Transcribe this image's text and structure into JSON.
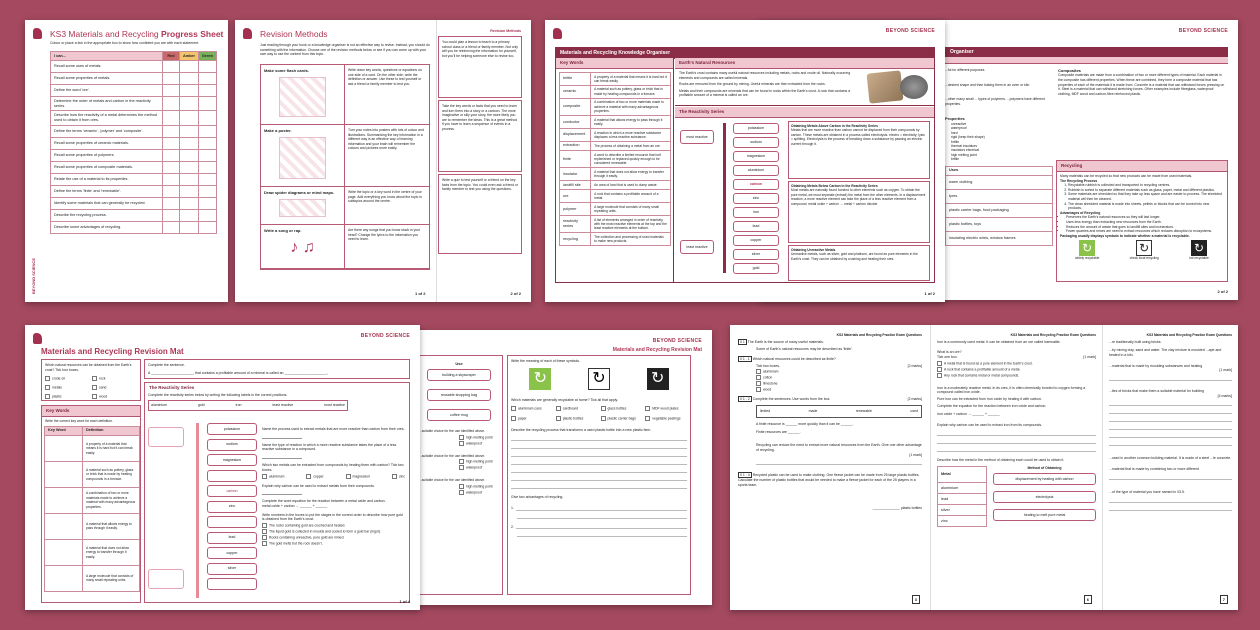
{
  "brand": "BEYOND SCIENCE",
  "colors": {
    "background": "#a4495f",
    "accent": "#8b2d47",
    "red": "#c96a6a",
    "amber": "#f2c46b",
    "green": "#79b05a"
  },
  "progress": {
    "title_a": "KS3 Materials and Recycling ",
    "title_b": "Progress Sheet",
    "intro": "Colour or place a tick in the appropriate box to show how confident you are with each statement.",
    "headers": [
      "I can...",
      "Red",
      "Amber",
      "Green"
    ],
    "rows": [
      "Recall some uses of metals.",
      "Recall some properties of metals.",
      "Define the word 'ore'.",
      "Determine the order of metals and carbon in the reactivity series.",
      "Describe how the reactivity of a metal determines the method used to obtain it from ores.",
      "Define the terms 'ceramic', 'polymer' and 'composite'.",
      "Recall some properties of ceramic materials.",
      "Recall some properties of polymers.",
      "Recall some properties of composite materials.",
      "Relate the use of a material to its properties.",
      "Define the terms 'finite' and 'renewable'.",
      "Identify some materials that can generally be recycled.",
      "Describe the recycling process.",
      "Describe some advantages of recycling."
    ]
  },
  "methods": {
    "title": "Revision Methods",
    "header_right": "Revision Methods",
    "intro": "Just reading through your book or a knowledge organiser is not an effective way to revise. Instead, you should do something with the information. Choose one of the revision methods below or see if you can come up with your own way to use the content from this topic.",
    "items": [
      {
        "label": "Make some flash cards.",
        "text": "Write down key words, questions or equations on one side of a card. On the other side, write the definition or answer. Use these to test yourself or ask a friend or family member to test you."
      },
      {
        "label": "Make a poster.",
        "text": "Turn your notes into posters with lots of colour and illustrations. Summarising the key information in a different way is an effective way of learning information and your brain will remember the colours and pictures more easily."
      },
      {
        "label": "Draw spider diagrams or mind maps.",
        "text": "Write the topic or a key word in the centre of your page. Add everything you know about the topic in subtopics around the centre."
      },
      {
        "label": "Write a song or rap.",
        "text": "Are there any songs that you know stuck in your head? Change the lyrics to the information you need to learn."
      }
    ],
    "right": [
      "You could plan a lesson to teach to a primary school class or a friend or family member. Not only will you be reinforcing the information for yourself, but you'll be helping someone else to revise too.",
      "Take the key words or facts that you need to learn and turn them into a story or a cartoon. The more imaginative or silly your story, the more likely you are to remember the ideas. This is a great method if you have to learn a sequence of events in a process.",
      "Write a quiz to test yourself or a friend on the key facts from the topic. You could even ask a friend or family member to test you using the questions."
    ],
    "page_left": "1 of 2",
    "page_right": "2 of 2"
  },
  "ko": {
    "title": "Materials and Recycling Knowledge Organiser",
    "key_words_title": "Key Words",
    "key_words": [
      [
        "brittle",
        "A property of a material that means it is hard but it can break easily."
      ],
      [
        "ceramic",
        "A material such as pottery, glass or brick that is made by heating compounds in a furnace."
      ],
      [
        "composite",
        "A combination of two or more materials made to achieve a material with many advantageous properties."
      ],
      [
        "conductor",
        "A material that allows energy to pass through it easily."
      ],
      [
        "displacement",
        "A reaction in which a more reactive substance displaces a less reactive substance."
      ],
      [
        "extraction",
        "The process of obtaining a metal from an ore."
      ],
      [
        "finite",
        "A word to describe a limited resource that isn't replenished or replaced quickly enough to be considered renewable."
      ],
      [
        "insulator",
        "A material that does not allow energy to transfer through it easily."
      ],
      [
        "landfill site",
        "An area of land that is used to dump waste."
      ],
      [
        "ore",
        "A rock that contains a profitable amount of a metal."
      ],
      [
        "polymer",
        "A large molecule that consists of many small repeating units."
      ],
      [
        "reactivity series",
        "A list of elements arranged in order of reactivity, with the most reactive elements at the top and the least reactive elements at the bottom."
      ],
      [
        "recycling",
        "The collection and processing of used materials to make new products."
      ]
    ],
    "earth_title": "Earth's Natural Resources",
    "earth_text": [
      "The Earth's crust contains many useful natural resources including metals, rocks and crude oil. Naturally occurring elements and compounds are called minerals.",
      "Rocks are removed from the ground by mining. Useful minerals are then extracted from the rocks.",
      "Metals and their compounds are minerals that can be found in rocks within the Earth's crust. A rock that contains a profitable amount of a mineral is called an ore."
    ],
    "reactivity_title": "The Reactivity Series",
    "most": "most reactive",
    "least": "least reactive",
    "metals": [
      "potassium",
      "sodium",
      "magnesium",
      "aluminium",
      "carbon",
      "zinc",
      "iron",
      "lead",
      "copper",
      "silver",
      "gold"
    ],
    "notes": [
      {
        "h": "Obtaining Metals Above Carbon in the Reactivity Series",
        "t": "Metals that are more reactive than carbon cannot be displaced from their compounds by carbon. These metals are obtained in a process called electrolysis. electro = electricity; lysis = splitting. Electrolysis is the process of breaking down a substance by passing an electric current through it."
      },
      {
        "h": "Obtaining Metals Below Carbon in the Reactivity Series",
        "t": "Most metals are naturally found bonded to other elements such as oxygen. To obtain the pure metal, we must separate (extract) the metal from the other elements. In a displacement reaction, a more reactive element can take the place of a less reactive element from a compound. metal oxide + carbon → metal + carbon dioxide"
      },
      {
        "h": "Obtaining Unreactive Metals",
        "t": "Unreactive metals, such as silver, gold and platinum, are found as pure elements in the Earth's crust. They can be obtained by crushing and heating their ores."
      }
    ],
    "page": "1 of 2",
    "p2_title": "Organiser",
    "p2_left": [
      "...ful for different purposes.",
      "...desired shape and then baking them in an oven or kiln.",
      "...other many small ... types of polymers. ...polymers have different properties."
    ],
    "p2_props_title": "Properties",
    "p2_props": [
      "unreactive",
      "waterproof",
      "hard",
      "rigid (keep their shape)",
      "brittle",
      "thermal insulators",
      "insulators electrical",
      "high melting point",
      "brittle"
    ],
    "p2_uses_title": "Uses",
    "p2_uses": [
      "warm clothing",
      "tyres",
      "plastic carrier bags, food packaging",
      "plastic bottles, toys",
      "insulating electric wires, window frames"
    ],
    "composites_title": "Composites",
    "composites_text": "Composite materials are made from a combination of two or more different types of material. Each material in the composite has different properties. When these are combined, they form a composite material that has properties of each of the materials it is made from. Concrete is a material that can withstand forces pressing on it. Steel is a material that can withstand stretching forces. Other examples include fibreglass, waterproof clothing, MDF wood and carbon-fibre reinforced plastic.",
    "recycling_title": "Recycling",
    "recycling_intro": "Many materials can be recycled so that new products can be made from used materials.",
    "process_title": "The Recycling Process",
    "process": [
      "Recyclable rubbish is collected and transported to recycling centres.",
      "Rubbish is sorted to separate different materials such as glass, paper, metal and different plastics.",
      "Some materials are shredded so that they take up less space and are easier to process. The shredded material will then be cleaned.",
      "The clean shredded material is made into sheets, pellets or blocks that can be turned into new products."
    ],
    "adv_title": "Advantages of Recycling",
    "adv": [
      "Preserves the Earth's natural resources so they will last longer.",
      "Uses less energy than extracting new resources from the Earth.",
      "Reduces the amount of waste that goes to landfill sites and incinerators.",
      "Fewer quarries and mines are need to extract resources which reduces disruption to ecosystems."
    ],
    "symbols_intro": "Packaging usually displays symbols to indicate whether a material is recyclable.",
    "symbols": [
      "widely recyclable",
      "check local recycling",
      "not recyclable"
    ],
    "page2": "2 of 2"
  },
  "mat": {
    "title": "Materials and Recycling Revision Mat",
    "q1": "Which natural resources can be obtained from the Earth's crust? Tick four boxes.",
    "q1_opts": [
      "crude oil",
      "rock",
      "metals",
      "sand",
      "plastic",
      "wood"
    ],
    "complete": "Complete the sentence.",
    "sentence_a": "A",
    "sentence_b": "that contains a profitable amount of a mineral is called an",
    "kw_title": "Key Words",
    "kw_intro": "Write the correct key word for each definition.",
    "kw_headers": [
      "Key Word",
      "Definition"
    ],
    "kw_defs": [
      "A property of a material that means it is hard but it can break easily.",
      "A material such as pottery, glass or brick that is made by heating compounds in a furnace.",
      "A combination of two or more materials made to achieve a material with many advantageous properties.",
      "A material that allows energy to pass through it easily.",
      "A material that does not allow energy to transfer through it easily.",
      "A large molecule that consists of many small repeating units."
    ],
    "rs_title": "The Reactivity Series",
    "rs_intro": "Complete the reactivity series below by writing the following labels in the correct positions.",
    "rs_labels": [
      "aluminium",
      "gold",
      "iron",
      "least reactive",
      "most reactive"
    ],
    "rs_pills": [
      "potassium",
      "sodium",
      "magnesium",
      "",
      "carbon",
      "zinc",
      "",
      "lead",
      "copper",
      "silver",
      ""
    ],
    "rs_qs": [
      "Name the process used to extract metals that are more reactive than carbon from their ores.",
      "Name the type of reaction in which a more reactive substance takes the place of a less reactive substance in a compound.",
      "Which two metals can be extracted from compounds by heating them with carbon? Tick two boxes.",
      "Explain why carbon can be used to extract metals from their compounds.",
      "Complete the word equation for the reaction between a metal oxide and carbon.",
      "Write numbers in the boxes to put the stages in the correct order to describe how pure gold is obtained from the Earth's crust."
    ],
    "rs_opts": [
      "aluminium",
      "copper",
      "magnesium",
      "zinc"
    ],
    "equation": "metal oxide + carbon → ______ + ______",
    "gold_steps": [
      "The rocks containing gold are crushed and heated.",
      "The liquid gold is collected in moulds and cooled to form a gold bar (ingot).",
      "Rocks containing unreactive, pure gold are mined.",
      "The gold melts but the rock doesn't."
    ],
    "page": "1 of 4",
    "p2_header": "Materials and Recycling Revision Mat",
    "p2_uses_title": "Use",
    "p2_uses": [
      "building a skyscraper",
      "reusable shopping bag",
      "coffee mug"
    ],
    "p2_choice": "...suitable choice for the use identified above.",
    "p2_props": [
      "high melting point",
      "waterproof"
    ],
    "p2_sym_q": "Write the meaning of each of these symbols.",
    "p2_recyc_q": "Which materials are generally recyclable at home? Tick all that apply.",
    "p2_recyc": [
      "aluminium cans",
      "cardboard",
      "glass bottles",
      "MDF wood plates",
      "paper",
      "plastic bottles",
      "plastic carrier bags",
      "vegetable peelings"
    ],
    "p2_process_q": "Describe the recycling process that transforms a used plastic bottle into a new plastic item.",
    "p2_adv_q": "Give two advantages of recycling.",
    "p2_adv_nums": [
      "1.",
      "2."
    ]
  },
  "exam": {
    "header": "KS3 Materials and Recycling Practice Exam Questions",
    "p1": {
      "q": "0 1",
      "intro": [
        "The Earth is the source of many useful materials.",
        "Some of Earth's natural resources may be described as 'finite'."
      ],
      "q11": "0 1 . 1",
      "q11_text": "Which natural resources could be described as finite?",
      "tick": "Tick two boxes.",
      "marks2": "[2 marks]",
      "opts": [
        "aluminium",
        "cotton",
        "limestone",
        "wood"
      ],
      "q12": "0 1 . 2",
      "q12_text": "Complete the sentences. Use words from the box.",
      "words": [
        "limited",
        "made",
        "renewable",
        "used"
      ],
      "s1": "A finite resource is ______ more quickly than it can be ______.",
      "s2": "Finite resources are ______.",
      "q13_text": "Recycling can reduce the need to extract more natural resources from the Earth. Give one other advantage of recycling.",
      "marks1": "[1 mark]",
      "q14": "0 1 . 4",
      "q14_text": "Recycled plastic can be used to make clothing. One fleece jacket can be made from 25 large plastic bottles. Calculate the number of plastic bottles that would be needed to make a fleece jacket for each of the 25 players in a sports team.",
      "answer": "plastic bottles",
      "page": "3"
    },
    "p2": {
      "intro": "Iron is a commonly used metal. It can be obtained from an ore called haematite.",
      "q": "What is an ore?",
      "tick": "Tick one box.",
      "opts": [
        "A metal that is found as a pure element in the Earth's crust.",
        "A rock that contains a profitable amount of a metal.",
        "Any rock that contains metal or metal compounds."
      ],
      "t2": "Iron is a moderately reactive metal. In its ores, it is often chemically bonded to oxygen forming a compound called iron oxide.",
      "t3": "Pure iron can be extracted from iron oxide by heating it with carbon.",
      "t4": "Complete the equation for the reaction between iron oxide and carbon.",
      "eq": "iron oxide + carbon → ______ + ______",
      "t5": "Explain why carbon can be used to extract iron from its compounds.",
      "t6": "Describe how the metal in the method of obtaining each could be used to obtain it.",
      "headers": [
        "Metal",
        "Method of Obtaining"
      ],
      "metals": [
        "aluminium",
        "lead",
        "silver",
        "zinc"
      ],
      "methods": [
        "displacement by heating with carbon",
        "electrolysis",
        "heating to melt pure metal"
      ],
      "page": "6"
    },
    "p3": {
      "t1": "...re traditionally built using bricks.",
      "t2": "...by mixing clay, sand and water. The clay mixture is moulded ...ape and heated in a kiln.",
      "t3": "...material that is made by moulding substances and heating",
      "t4": "...ties of bricks that make them a suitable material for building",
      "marks4": "[4 marks]",
      "t5": "...used in another common building material. It is made of a steel ...le concrete.",
      "t6": "...material that is made by combining two or more different",
      "t7": "...of the type of material you have named in 03.5.",
      "page": "7"
    }
  }
}
